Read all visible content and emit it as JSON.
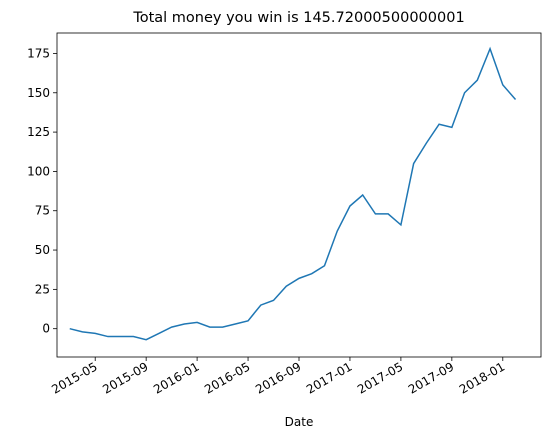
{
  "chart_data": {
    "type": "line",
    "title": "Total money you win is 145.72000500000001",
    "x_label": "Date",
    "x": [
      "2015-03",
      "2015-04",
      "2015-05",
      "2015-06",
      "2015-07",
      "2015-08",
      "2015-09",
      "2015-10",
      "2015-11",
      "2015-12",
      "2016-01",
      "2016-02",
      "2016-03",
      "2016-04",
      "2016-05",
      "2016-06",
      "2016-07",
      "2016-08",
      "2016-09",
      "2016-10",
      "2016-11",
      "2016-12",
      "2017-01",
      "2017-02",
      "2017-03",
      "2017-04",
      "2017-05",
      "2017-06",
      "2017-07",
      "2017-08",
      "2017-09",
      "2017-10",
      "2017-11",
      "2017-12",
      "2018-01",
      "2018-02"
    ],
    "series": [
      {
        "color": "#1f77b4",
        "values": [
          0,
          -2,
          -3,
          -5,
          -5,
          -5,
          -7,
          -3,
          1,
          3,
          4,
          1,
          1,
          3,
          5,
          15,
          18,
          27,
          32,
          35,
          40,
          62,
          78,
          85,
          73,
          73,
          66,
          105,
          118,
          130,
          128,
          150,
          158,
          178,
          155,
          145.72
        ]
      }
    ],
    "xlim": [
      "2015-02",
      "2018-04"
    ],
    "xticks": [
      "2015-05",
      "2015-09",
      "2016-01",
      "2016-05",
      "2016-09",
      "2017-01",
      "2017-05",
      "2017-09",
      "2018-01"
    ],
    "ylim": [
      -18,
      188
    ],
    "yticks": [
      0,
      25,
      50,
      75,
      100,
      125,
      150,
      175
    ],
    "grid": false
  }
}
